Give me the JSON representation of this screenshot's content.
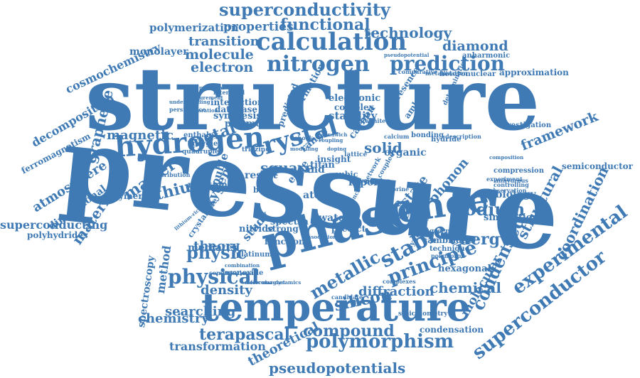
{
  "color": "#3f7ab5",
  "words": [
    "structure",
    "pressure",
    "phase",
    "science",
    "temperature",
    "hydrogen",
    "superconductivity",
    "calculation",
    "nitrogen",
    "prediction",
    "superconductor",
    "experimental",
    "principle",
    "polymorphism",
    "compound",
    "pseudopotentials",
    "physical",
    "condensed",
    "crystal",
    "energy",
    "sodium",
    "stable",
    "metallic",
    "technology",
    "functional",
    "properties",
    "polymerization",
    "transition",
    "molecule",
    "electron",
    "diamond",
    "monolayer",
    "cosmochemistry",
    "graphene",
    "decomposition",
    "ferromagnetism",
    "atmosphere",
    "dimensional",
    "material",
    "lithium",
    "matter",
    "polymeric",
    "superconducting",
    "polyhydrides",
    "magnetic",
    "metal",
    "square",
    "framework",
    "semiconductor",
    "coordination",
    "structural",
    "molecular",
    "chemical",
    "hexagonal",
    "spectroscopy",
    "method",
    "density",
    "searching",
    "chemistry",
    "terapascal",
    "transformation",
    "theoretical",
    "silicon",
    "diffraction",
    "condensation",
    "exobiology",
    "simulation",
    "approximation",
    "anharmonic",
    "heteronuclear",
    "metallization",
    "comparative",
    "pseudopotential",
    "electronic",
    "complex",
    "stability",
    "formation",
    "synthesis",
    "plasmon",
    "interaction",
    "database",
    "interband",
    "enthalpy",
    "energies",
    "quadruple",
    "triazine",
    "range",
    "insight",
    "solid",
    "organic",
    "bonding",
    "hydride",
    "description",
    "investigation",
    "calcium",
    "carbon",
    "lattice",
    "band",
    "edge",
    "result",
    "reaction",
    "oxygen",
    "double",
    "crystalline",
    "nitride",
    "study",
    "water",
    "dense",
    "report",
    "cubic",
    "atom",
    "state",
    "phonon",
    "mediated",
    "theory",
    "physic",
    "function",
    "spectra",
    "strong",
    "predict",
    "bilayer",
    "cambridge",
    "technique",
    "synthetic",
    "agreement",
    "compression",
    "anhydrous",
    "controlling",
    "experiment",
    "observation",
    "monoxide",
    "platinum",
    "boron",
    "titan",
    "predicted",
    "presence",
    "determination",
    "composition",
    "ambient",
    "graphite",
    "sandwich",
    "persistence",
    "understanding",
    "computational",
    "combination",
    "ferromagnet",
    "dissociation",
    "existence",
    "coupled",
    "network",
    "fluorine",
    "polymorph",
    "complexes",
    "stoichiometry",
    "candidate",
    "expansion",
    "measurement",
    "distribution",
    "exploration",
    "potential",
    "lithium-rich",
    "shock",
    "modelling",
    "doping",
    "coupling",
    "molecular-dynamics"
  ]
}
